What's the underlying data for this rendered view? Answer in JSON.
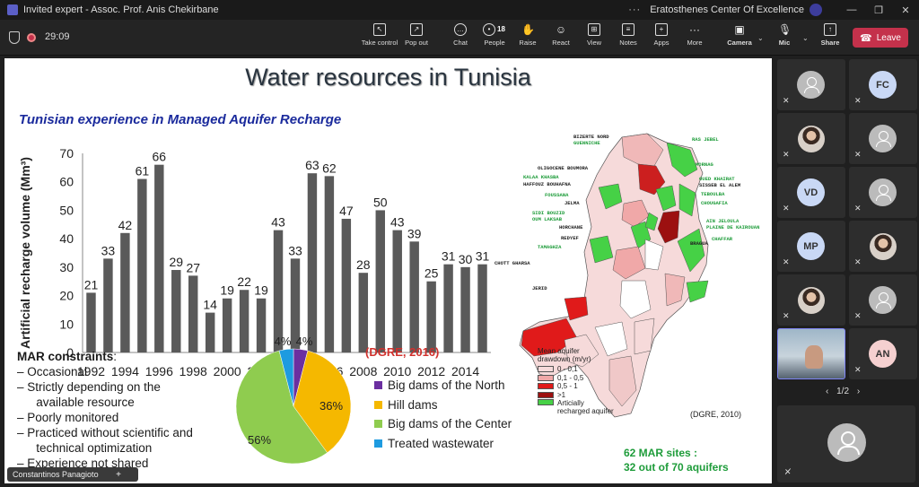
{
  "window": {
    "title": "Invited expert - Assoc. Prof. Anis Chekirbane",
    "org": "Eratosthenes Center Of Excellence",
    "more": "···",
    "min": "—",
    "max": "❐",
    "close": "✕"
  },
  "toolbar": {
    "timer": "29:09",
    "take_control": "Take control",
    "pop_out": "Pop out",
    "chat": "Chat",
    "people": "People",
    "people_count": "18",
    "raise": "Raise",
    "react": "React",
    "view": "View",
    "notes": "Notes",
    "apps": "Apps",
    "more": "More",
    "camera": "Camera",
    "mic": "Mic",
    "share": "Share",
    "leave": "Leave"
  },
  "slide": {
    "title": "Water resources in Tunisia",
    "subtitle": "Tunisian experience in Managed Aquifer Recharge",
    "mar_title": "MAR constraints",
    "mar_items": [
      "Occasional",
      "Strictly depending on the",
      "available resource",
      "Poorly monitored",
      "Practiced without scientific and",
      "technical optimization",
      "Experience not shared"
    ],
    "dgre_2016": "(DGRE, 2016)",
    "map_legend_title": "Mean aquifer\ndrawdown (m/yr)",
    "map_legend": [
      "0 - 0,1",
      "0,1 - 0,5",
      "0,5 - 1",
      ">1",
      "Articially recharged aquifer"
    ],
    "dgre_2010": "(DGRE, 2010)",
    "sites_line1": "62 MAR sites :",
    "sites_line2": "32 out of 70 aquifers",
    "map_labels": [
      "BIZERTE NORD",
      "GUENNICHE",
      "RAS JEBEL",
      "MORNAG",
      "OLIGOCENE BOUMORA",
      "KALAA KHASBA",
      "HAFFOUZ BOUHAFNA",
      "OUED KHAIRAT",
      "SISSEB EL ALEM",
      "FOUSSANA",
      "TEBOULBA",
      "JELMA",
      "CHOUGAFIA",
      "SIDI BOUZID",
      "OUM LAKSAB",
      "HORCHANE",
      "AIN JELOULA",
      "PLAINE DE KAIROUAN",
      "REDYEF",
      "BRAGUA",
      "TAMAGHZA",
      "CHAFFAR",
      "CHOTT GHARSA",
      "JERID"
    ]
  },
  "chart_data": [
    {
      "type": "bar",
      "ylabel": "Artificial recharge volume (Mm³)",
      "ylim": [
        0,
        70
      ],
      "yticks": [
        "0",
        "10",
        "20",
        "30",
        "40",
        "50",
        "60",
        "70"
      ],
      "x": [
        "1992",
        "1993",
        "1994",
        "1995",
        "1996",
        "1997",
        "1998",
        "1999",
        "2000",
        "2001",
        "2002",
        "2003",
        "2004",
        "2005",
        "2006",
        "2007",
        "2008",
        "2009",
        "2010",
        "2011",
        "2012",
        "2013",
        "2014",
        "2015"
      ],
      "xticks": [
        "1992",
        "1994",
        "1996",
        "1998",
        "2000",
        "2002",
        "2004",
        "2006",
        "2008",
        "2010",
        "2012",
        "2014"
      ],
      "values": [
        21,
        33,
        42,
        61,
        66,
        29,
        27,
        14,
        19,
        22,
        19,
        43,
        33,
        63,
        62,
        47,
        28,
        50,
        43,
        39,
        25,
        31,
        30,
        31
      ],
      "bar_color": "#5a5a5a",
      "grid": false
    },
    {
      "type": "pie",
      "labels": [
        "Big dams of the North",
        "Hill dams",
        "Big dams of the Center",
        "Treated wastewater"
      ],
      "values": [
        4,
        36,
        56,
        4
      ],
      "value_labels": [
        "4%",
        "36%",
        "56%",
        "4%"
      ],
      "colors": [
        "#6b2fa0",
        "#f5b800",
        "#8fcc4f",
        "#1e9be0"
      ],
      "legend": "right"
    }
  ],
  "participants": [
    {
      "initials": "",
      "kind": "generic"
    },
    {
      "initials": "FC",
      "kind": "initials",
      "color": "#c9d8f5"
    },
    {
      "initials": "",
      "kind": "photo"
    },
    {
      "initials": "",
      "kind": "generic"
    },
    {
      "initials": "VD",
      "kind": "initials",
      "color": "#c9d8f5"
    },
    {
      "initials": "",
      "kind": "generic"
    },
    {
      "initials": "MP",
      "kind": "initials",
      "color": "#c9d8f5"
    },
    {
      "initials": "",
      "kind": "photo"
    },
    {
      "initials": "",
      "kind": "photo"
    },
    {
      "initials": "",
      "kind": "generic"
    },
    {
      "initials": "",
      "kind": "video"
    },
    {
      "initials": "AN",
      "kind": "initials",
      "color": "#f5d0d0"
    }
  ],
  "pager": "1/2",
  "name_badge": "Constantinos Panagiotou",
  "name_badge_plus": "+"
}
